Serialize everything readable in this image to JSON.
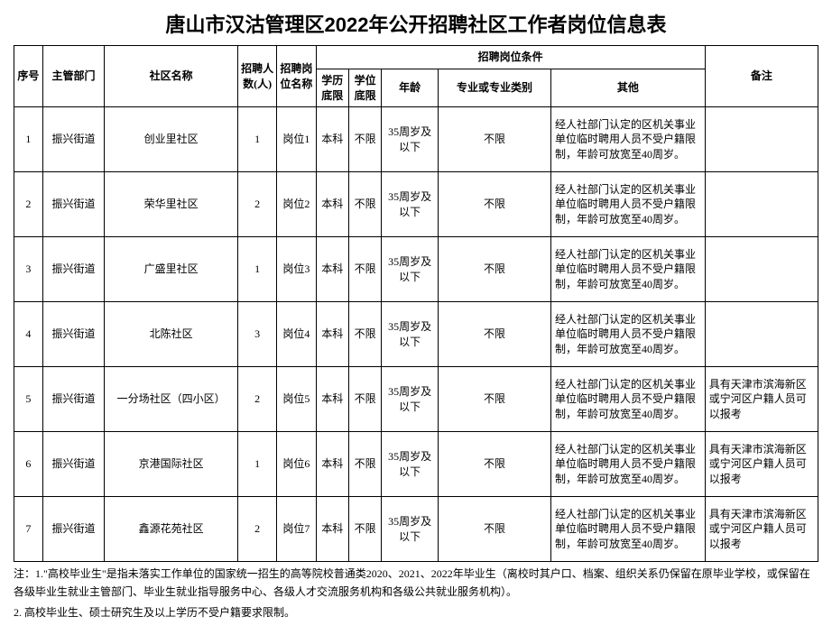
{
  "title": "唐山市汉沽管理区2022年公开招聘社区工作者岗位信息表",
  "headers": {
    "seq": "序号",
    "dept": "主管部门",
    "community": "社区名称",
    "count": "招聘人数(人)",
    "position": "招聘岗位名称",
    "conditions": "招聘岗位条件",
    "edu": "学历底限",
    "degree": "学位底限",
    "age": "年龄",
    "major": "专业或专业类别",
    "other": "其他",
    "note": "备注"
  },
  "rows": [
    {
      "seq": "1",
      "dept": "振兴街道",
      "community": "创业里社区",
      "count": "1",
      "position": "岗位1",
      "edu": "本科",
      "degree": "不限",
      "age": "35周岁及以下",
      "major": "不限",
      "other": "经人社部门认定的区机关事业单位临时聘用人员不受户籍限制，年龄可放宽至40周岁。",
      "note": ""
    },
    {
      "seq": "2",
      "dept": "振兴街道",
      "community": "荣华里社区",
      "count": "2",
      "position": "岗位2",
      "edu": "本科",
      "degree": "不限",
      "age": "35周岁及以下",
      "major": "不限",
      "other": "经人社部门认定的区机关事业单位临时聘用人员不受户籍限制，年龄可放宽至40周岁。",
      "note": ""
    },
    {
      "seq": "3",
      "dept": "振兴街道",
      "community": "广盛里社区",
      "count": "1",
      "position": "岗位3",
      "edu": "本科",
      "degree": "不限",
      "age": "35周岁及以下",
      "major": "不限",
      "other": "经人社部门认定的区机关事业单位临时聘用人员不受户籍限制，年龄可放宽至40周岁。",
      "note": ""
    },
    {
      "seq": "4",
      "dept": "振兴街道",
      "community": "北陈社区",
      "count": "3",
      "position": "岗位4",
      "edu": "本科",
      "degree": "不限",
      "age": "35周岁及以下",
      "major": "不限",
      "other": "经人社部门认定的区机关事业单位临时聘用人员不受户籍限制，年龄可放宽至40周岁。",
      "note": ""
    },
    {
      "seq": "5",
      "dept": "振兴街道",
      "community": "一分场社区（四小区）",
      "count": "2",
      "position": "岗位5",
      "edu": "本科",
      "degree": "不限",
      "age": "35周岁及以下",
      "major": "不限",
      "other": "经人社部门认定的区机关事业单位临时聘用人员不受户籍限制，年龄可放宽至40周岁。",
      "note": "具有天津市滨海新区或宁河区户籍人员可以报考"
    },
    {
      "seq": "6",
      "dept": "振兴街道",
      "community": "京港国际社区",
      "count": "1",
      "position": "岗位6",
      "edu": "本科",
      "degree": "不限",
      "age": "35周岁及以下",
      "major": "不限",
      "other": "经人社部门认定的区机关事业单位临时聘用人员不受户籍限制，年龄可放宽至40周岁。",
      "note": "具有天津市滨海新区或宁河区户籍人员可以报考"
    },
    {
      "seq": "7",
      "dept": "振兴街道",
      "community": "鑫源花苑社区",
      "count": "2",
      "position": "岗位7",
      "edu": "本科",
      "degree": "不限",
      "age": "35周岁及以下",
      "major": "不限",
      "other": "经人社部门认定的区机关事业单位临时聘用人员不受户籍限制，年龄可放宽至40周岁。",
      "note": "具有天津市滨海新区或宁河区户籍人员可以报考"
    }
  ],
  "footnote1": "注：1.\"高校毕业生\"是指未落实工作单位的国家统一招生的高等院校普通类2020、2021、2022年毕业生（离校时其户口、档案、组织关系仍保留在原毕业学校，或保留在各级毕业生就业主管部门、毕业生就业指导服务中心、各级人才交流服务机构和各级公共就业服务机构）。",
  "footnote2": "2. 高校毕业生、硕士研究生及以上学历不受户籍要求限制。"
}
